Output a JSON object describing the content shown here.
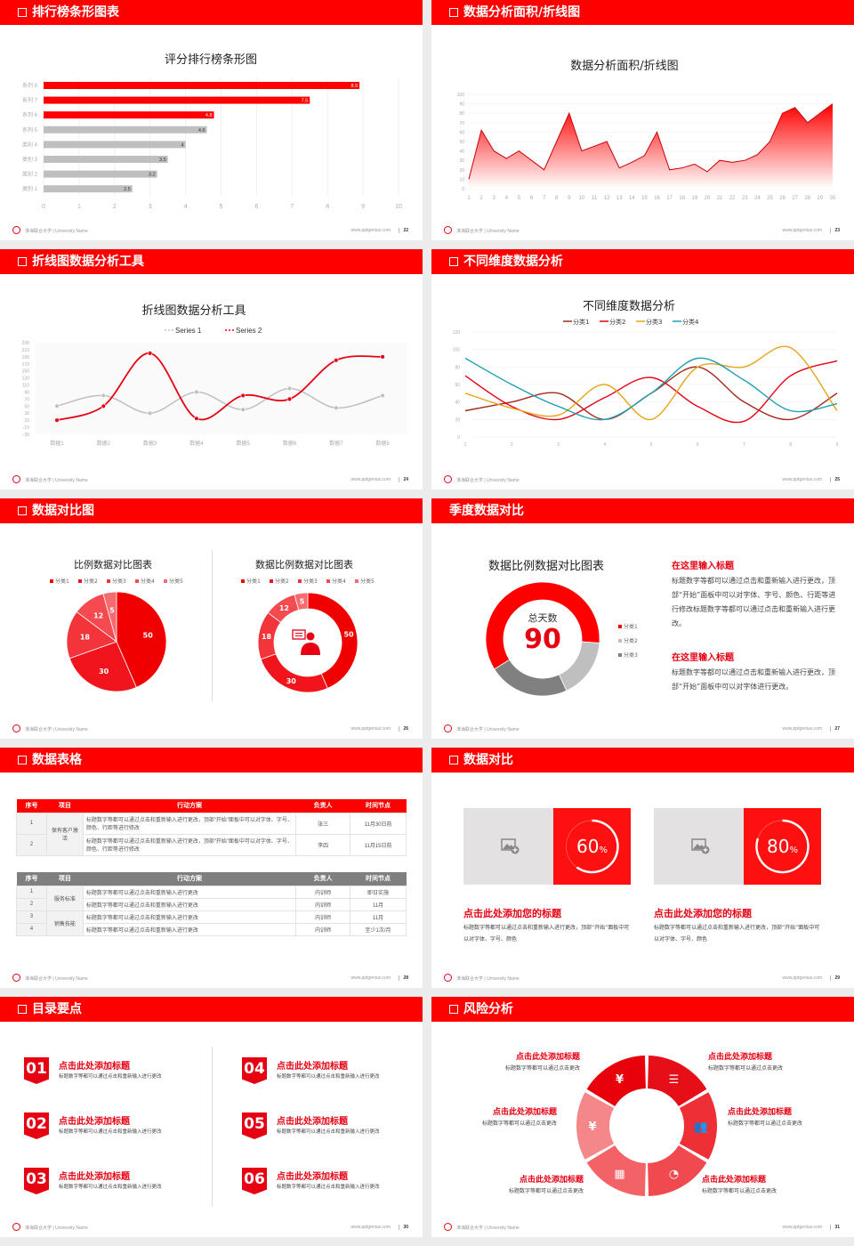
{
  "footer": {
    "university": "淮海联合大学 | University Name",
    "url": "www.pptgenius.com"
  },
  "slides": [
    {
      "title": "排行榜条形图表",
      "page": "22"
    },
    {
      "title": "数据分析面积/折线图",
      "page": "23"
    },
    {
      "title": "折线图数据分析工具",
      "page": "24"
    },
    {
      "title": "不同维度数据分析",
      "page": "25"
    },
    {
      "title": "数据对比图",
      "page": "26"
    },
    {
      "title": "季度数据对比",
      "page": "27"
    },
    {
      "title": "数据表格",
      "page": "28"
    },
    {
      "title": "数据对比",
      "page": "29"
    },
    {
      "title": "目录要点",
      "page": "30"
    },
    {
      "title": "风险分析",
      "page": "31"
    }
  ],
  "chart_data": [
    {
      "type": "bar",
      "orientation": "horizontal",
      "title": "评分排行榜条形图",
      "categories": [
        "系列 8",
        "系列 7",
        "系列 6",
        "系列 5",
        "类别 4",
        "类别 3",
        "类别 2",
        "类别 1"
      ],
      "values": [
        8.9,
        7.5,
        4.8,
        4.6,
        4,
        3.5,
        3.2,
        2.5
      ],
      "colors": [
        "#ff0000",
        "#ff0000",
        "#ff0000",
        "#bfbfbf",
        "#bfbfbf",
        "#bfbfbf",
        "#bfbfbf",
        "#bfbfbf"
      ],
      "xlim": [
        0,
        10
      ],
      "xticks": [
        0,
        1,
        2,
        3,
        4,
        5,
        6,
        7,
        8,
        9,
        10
      ],
      "grid": true
    },
    {
      "type": "area",
      "title": "数据分析面积/折线图",
      "x": [
        1,
        2,
        3,
        4,
        5,
        6,
        7,
        8,
        9,
        10,
        11,
        12,
        13,
        14,
        15,
        16,
        17,
        18,
        19,
        20,
        21,
        22,
        23,
        24,
        25,
        26,
        27,
        28,
        29,
        30
      ],
      "values": [
        10,
        62,
        40,
        32,
        40,
        30,
        20,
        50,
        80,
        40,
        45,
        50,
        22,
        28,
        35,
        60,
        20,
        22,
        26,
        18,
        30,
        28,
        30,
        36,
        50,
        80,
        86,
        70,
        80,
        90
      ],
      "ylim": [
        0,
        100
      ],
      "yticks": [
        0,
        10,
        20,
        30,
        40,
        50,
        60,
        70,
        80,
        90,
        100
      ],
      "color": "#ff0000"
    },
    {
      "type": "line",
      "title": "折线图数据分析工具",
      "categories": [
        "数据1",
        "数据2",
        "数据3",
        "数据4",
        "数据5",
        "数据6",
        "数据7",
        "数据8"
      ],
      "series": [
        {
          "name": "Series 1",
          "values": [
            50,
            80,
            30,
            90,
            40,
            100,
            45,
            80
          ],
          "color": "#bfbfbf"
        },
        {
          "name": "Series 2",
          "values": [
            10,
            50,
            200,
            15,
            80,
            70,
            180,
            190
          ],
          "color": "#e60012"
        }
      ],
      "ylim": [
        -30,
        230
      ],
      "yticks": [
        -30,
        -10,
        10,
        30,
        50,
        70,
        90,
        110,
        130,
        150,
        170,
        190,
        210,
        230
      ],
      "legend": "top",
      "smooth": true
    },
    {
      "type": "line",
      "title": "不同维度数据分析",
      "x": [
        1,
        2,
        3,
        4,
        5,
        6,
        7,
        8,
        9
      ],
      "series": [
        {
          "name": "分类1",
          "values": [
            30,
            40,
            50,
            20,
            50,
            80,
            40,
            20,
            50
          ],
          "color": "#a52a1e"
        },
        {
          "name": "分类2",
          "values": [
            70,
            35,
            20,
            45,
            68,
            35,
            18,
            70,
            87
          ],
          "color": "#e60012"
        },
        {
          "name": "分类3",
          "values": [
            50,
            33,
            25,
            60,
            20,
            80,
            80,
            102,
            30
          ],
          "color": "#e8a317"
        },
        {
          "name": "分类4",
          "values": [
            90,
            60,
            35,
            20,
            50,
            90,
            65,
            30,
            38
          ],
          "color": "#1fa0b4"
        }
      ],
      "ylim": [
        0,
        120
      ],
      "yticks": [
        0,
        20,
        40,
        60,
        80,
        100,
        120
      ],
      "legend": "top",
      "smooth": true
    },
    {
      "type": "pie",
      "title": "比例数据对比图表",
      "categories": [
        "分类1",
        "分类2",
        "分类3",
        "分类4",
        "分类5"
      ],
      "values": [
        50,
        30,
        18,
        12,
        5
      ],
      "colors": [
        "#f00000",
        "#f2141c",
        "#f3343a",
        "#f44a50",
        "#f56b70"
      ],
      "legend": "top"
    },
    {
      "type": "donut",
      "title": "数据比例数据对比图表",
      "categories": [
        "分类1",
        "分类2",
        "分类3",
        "分类4",
        "分类5"
      ],
      "values": [
        50,
        30,
        18,
        12,
        5
      ],
      "colors": [
        "#f00000",
        "#f2141c",
        "#f3343a",
        "#f44a50",
        "#f56b70"
      ],
      "legend": "top",
      "center_icon": "customer-service-person-icon"
    },
    {
      "type": "donut",
      "title": "数据比例数据对比图表",
      "categories": [
        "分类1",
        "分类2",
        "分类3"
      ],
      "values": [
        60,
        17,
        23
      ],
      "colors": [
        "#ff0000",
        "#bfbfbf",
        "#808080"
      ],
      "legend": "right",
      "center_label": "总天数",
      "center_value": "90"
    }
  ],
  "quarter": {
    "blocks": [
      {
        "heading": "在这里输入标题",
        "text": "标题数字等都可以通过点击和重新输入进行更改，顶部“开始”面板中可以对字体、字号、颜色、行距等进行修改标题数字等都可以通过点击和重新输入进行更改。"
      },
      {
        "heading": "在这里输入标题",
        "text": "标题数字等都可以通过点击和重新输入进行更改，顶部“开始”面板中可以对字体进行更改。"
      }
    ]
  },
  "tables": {
    "headers": [
      "序号",
      "项目",
      "行动方案",
      "负责人",
      "时间节点"
    ],
    "table1": {
      "group": "保有客户激活",
      "rows": [
        {
          "no": "1",
          "plan": "标题数字等都可以通过点击和重新输入进行更改，顶部“开始”面板中可以对字体、字号、颜色、行距等进行修改",
          "owner": "张三",
          "time": "11月30日前"
        },
        {
          "no": "2",
          "plan": "标题数字等都可以通过点击和重新输入进行更改，顶部“开始”面板中可以对字体、字号、颜色、行距等进行修改",
          "owner": "李四",
          "time": "11月15日前"
        }
      ]
    },
    "table2": {
      "groups": [
        "服务标准",
        "销售技能"
      ],
      "rows": [
        {
          "no": "1",
          "plan": "标题数字等都可以通过点击和重新输入进行更改",
          "owner": "内训师",
          "time": "即日实施"
        },
        {
          "no": "2",
          "plan": "标题数字等都可以通过点击和重新输入进行更改",
          "owner": "内训师",
          "time": "11月"
        },
        {
          "no": "3",
          "plan": "标题数字等都可以通过点击和重新输入进行更改",
          "owner": "内训师",
          "time": "11月"
        },
        {
          "no": "4",
          "plan": "标题数字等都可以通过点击和重新输入进行更改",
          "owner": "内训师",
          "time": "至少1次/月"
        }
      ]
    }
  },
  "compare": {
    "cards": [
      {
        "percent": 60,
        "value": "60",
        "unit": "%",
        "heading": "点击此处添加您的标题",
        "text": "标题数字等都可以通过点击和重新输入进行更改，顶部“开始”面板中可以对字体、字号、颜色"
      },
      {
        "percent": 80,
        "value": "80",
        "unit": "%",
        "heading": "点击此处添加您的标题",
        "text": "标题数字等都可以通过点击和重新输入进行更改，顶部“开始”面板中可以对字体、字号、颜色"
      }
    ]
  },
  "toc": {
    "items": [
      {
        "num": "01",
        "title": "点击此处添加标题",
        "text": "标题数字等都可以通过点击和重新输入进行更改"
      },
      {
        "num": "02",
        "title": "点击此处添加标题",
        "text": "标题数字等都可以通过点击和重新输入进行更改"
      },
      {
        "num": "03",
        "title": "点击此处添加标题",
        "text": "标题数字等都可以通过点击和重新输入进行更改"
      },
      {
        "num": "04",
        "title": "点击此处添加标题",
        "text": "标题数字等都可以通过点击和重新输入进行更改"
      },
      {
        "num": "05",
        "title": "点击此处添加标题",
        "text": "标题数字等都可以通过点击和重新输入进行更改"
      },
      {
        "num": "06",
        "title": "点击此处添加标题",
        "text": "标题数字等都可以通过点击和重新输入进行更改"
      }
    ]
  },
  "risk": {
    "items": [
      {
        "title": "点击此处添加标题",
        "text": "标题数字等都可以通过点击更改",
        "icon": "money-bag-icon"
      },
      {
        "title": "点击此处添加标题",
        "text": "标题数字等都可以通过点击更改",
        "icon": "coins-icon"
      },
      {
        "title": "点击此处添加标题",
        "text": "标题数字等都可以通过点击更改",
        "icon": "people-icon"
      },
      {
        "title": "点击此处添加标题",
        "text": "标题数字等都可以通过点击更改",
        "icon": "pie-chart-icon"
      },
      {
        "title": "点击此处添加标题",
        "text": "标题数字等都可以通过点击更改",
        "icon": "building-icon"
      },
      {
        "title": "点击此处添加标题",
        "text": "标题数字等都可以通过点击更改",
        "icon": "yen-hand-icon"
      }
    ],
    "colors": [
      "#e8000b",
      "#e60f18",
      "#ee2f36",
      "#f04a50",
      "#f36267",
      "#f5878b"
    ]
  }
}
